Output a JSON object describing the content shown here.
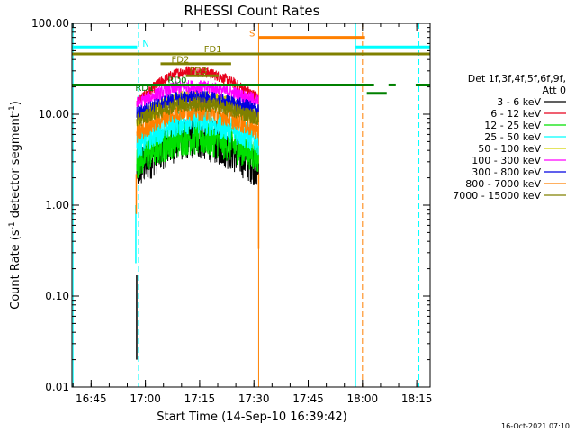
{
  "chart_data": {
    "type": "line",
    "title": "RHESSI Count Rates",
    "xlabel": "Start Time (14-Sep-10 16:39:42)",
    "ylabel_parts": {
      "base": "Count Rate (s",
      "sup": "-1",
      "rest": " detector segment",
      "close": ")"
    },
    "x_unit": "minutes after 16:39:42",
    "xlim": [
      0,
      99
    ],
    "ylim": [
      0.01,
      100
    ],
    "y_scale": "log",
    "xticks": [
      {
        "v": 5.3,
        "label": "16:45"
      },
      {
        "v": 20.3,
        "label": "17:00"
      },
      {
        "v": 35.3,
        "label": "17:15"
      },
      {
        "v": 50.3,
        "label": "17:30"
      },
      {
        "v": 65.3,
        "label": "17:45"
      },
      {
        "v": 80.3,
        "label": "18:00"
      },
      {
        "v": 95.3,
        "label": "18:15"
      }
    ],
    "yticks": [
      {
        "v": 100,
        "label": "100.00"
      },
      {
        "v": 10,
        "label": "10.00"
      },
      {
        "v": 1,
        "label": "1.00"
      },
      {
        "v": 0.1,
        "label": "0.10"
      },
      {
        "v": 0.01,
        "label": "0.01"
      }
    ],
    "legend_header": [
      "Det 1f,3f,4f,5f,6f,9f,",
      "Att 0"
    ],
    "series": [
      {
        "name": "3 - 6 keV",
        "color": "#000000",
        "base": 2.4,
        "peak": 5.5,
        "end": 2.6
      },
      {
        "name": "6 - 12 keV",
        "color": "#e8001c",
        "base": 13.5,
        "peak": 30,
        "end": 15
      },
      {
        "name": "12 - 25 keV",
        "color": "#00e000",
        "base": 3.0,
        "peak": 5.5,
        "end": 3.5
      },
      {
        "name": "25 - 50 keV",
        "color": "#00ffff",
        "base": 4.5,
        "peak": 8.5,
        "end": 5.0
      },
      {
        "name": "50 - 100 keV",
        "color": "#d4d400",
        "base": 8.5,
        "peak": 15,
        "end": 9.5
      },
      {
        "name": "100 - 300 keV",
        "color": "#ff00ff",
        "base": 13,
        "peak": 20,
        "end": 14
      },
      {
        "name": "300 - 800 keV",
        "color": "#0000e0",
        "base": 10,
        "peak": 15,
        "end": 11
      },
      {
        "name": "800 - 7000 keV",
        "color": "#ff8000",
        "base": 6.0,
        "peak": 11,
        "end": 6.5
      },
      {
        "name": "7000 - 15000 keV",
        "color": "#808000",
        "base": 8.5,
        "peak": 13,
        "end": 9.0
      }
    ],
    "data_range": [
      17.9,
      51.6
    ],
    "peak_time": 33,
    "flag_bars": [
      {
        "label": "N",
        "color": "#00ffff",
        "segments": [
          [
            0,
            18.0
          ],
          [
            78.5,
            99
          ]
        ],
        "y": 55,
        "label_x": 19.5,
        "label_y": 55
      },
      {
        "label": "S",
        "color": "#ff8000",
        "segments": [
          [
            51.6,
            81.0
          ]
        ],
        "y": 70,
        "label_x": 49.0,
        "label_y": 72
      },
      {
        "label": "FD1",
        "color": "#808000",
        "segments": [
          [
            0,
            99
          ]
        ],
        "y": 46,
        "label_x": 36.5,
        "label_y": 48
      },
      {
        "label": "FD2",
        "color": "#808000",
        "segments": [
          [
            24.5,
            44.0
          ]
        ],
        "y": 36,
        "label_x": 27.5,
        "label_y": 37
      },
      {
        "label": "FD3",
        "color": "#808000",
        "segments": [
          [
            31.5,
            40.5
          ]
        ],
        "y": 26.5,
        "label_x": 32.5,
        "label_y": 28
      },
      {
        "label": "RD0",
        "color": "#008000",
        "segments": [
          [
            0,
            83.5
          ],
          [
            87.5,
            89.5
          ],
          [
            95,
            99
          ]
        ],
        "y": 21,
        "label_x": 26.5,
        "label_y": 22
      },
      {
        "label": "RD1",
        "color": "#008000",
        "segments": [
          [
            81.5,
            87.0
          ]
        ],
        "y": 17,
        "label_x": 17.5,
        "label_y": 18
      }
    ],
    "vlines": [
      {
        "x": 18.4,
        "color": "#00ffff",
        "style": "dash"
      },
      {
        "x": 80.3,
        "color": "#ff8000",
        "style": "dash"
      },
      {
        "x": 95.9,
        "color": "#00ffff",
        "style": "dash"
      },
      {
        "x": 51.6,
        "color": "#ff8000",
        "style": "solid"
      },
      {
        "x": 78.4,
        "color": "#00ffff",
        "style": "solid"
      },
      {
        "x": 0.3,
        "color": "#00ffff",
        "style": "solid"
      }
    ]
  },
  "footer": {
    "timestamp": "16-Oct-2021 07:10"
  }
}
